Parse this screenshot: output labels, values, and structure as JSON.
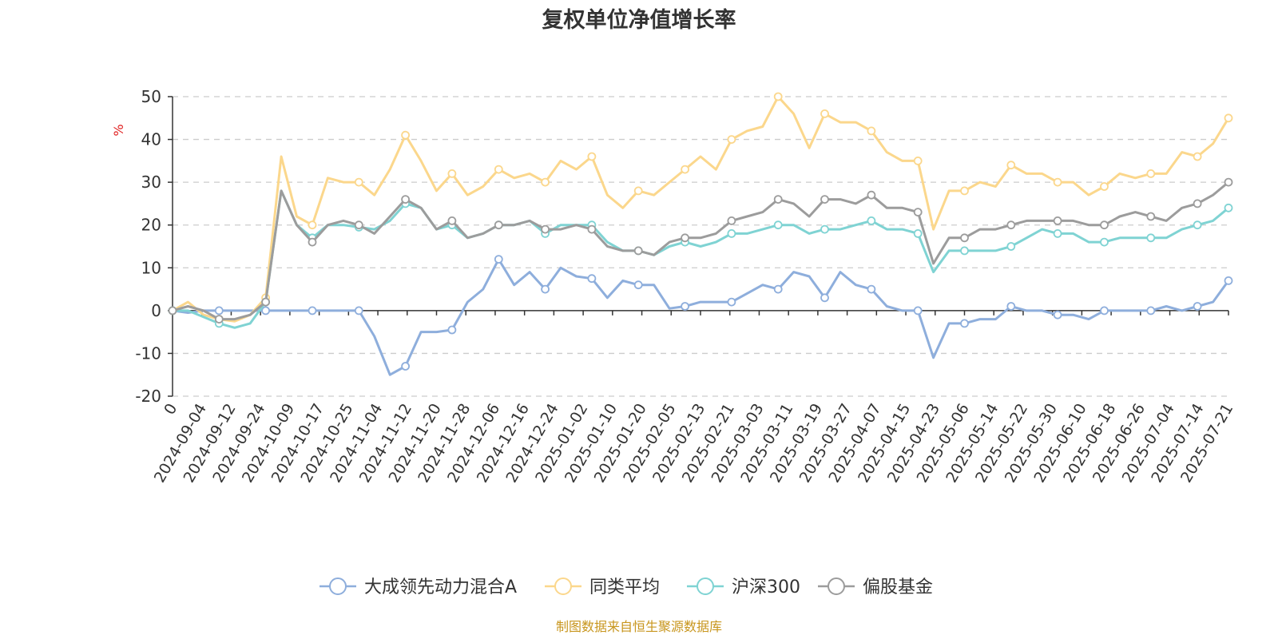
{
  "chart_data": {
    "type": "line",
    "title": "复权单位净值增长率",
    "ylabel": "%",
    "ylim": [
      -20,
      50
    ],
    "yticks": [
      -20,
      -10,
      0,
      10,
      20,
      30,
      40,
      50
    ],
    "grid": true,
    "legend_position": "bottom",
    "x_tick_labels": [
      "0",
      "2024-09-04",
      "2024-09-12",
      "2024-09-24",
      "2024-10-09",
      "2024-10-17",
      "2024-10-25",
      "2024-11-04",
      "2024-11-12",
      "2024-11-20",
      "2024-11-28",
      "2024-12-06",
      "2024-12-16",
      "2024-12-24",
      "2025-01-02",
      "2025-01-10",
      "2025-01-20",
      "2025-02-05",
      "2025-02-13",
      "2025-02-21",
      "2025-03-03",
      "2025-03-11",
      "2025-03-19",
      "2025-03-27",
      "2025-04-07",
      "2025-04-15",
      "2025-04-23",
      "2025-05-06",
      "2025-05-14",
      "2025-05-22",
      "2025-05-30",
      "2025-06-10",
      "2025-06-18",
      "2025-06-26",
      "2025-07-04",
      "2025-07-14",
      "2025-07-21"
    ],
    "series": [
      {
        "name": "大成领先动力混合A",
        "color": "#8eaedc",
        "values": [
          0,
          -0.5,
          0,
          0,
          0,
          0,
          0,
          0,
          0,
          0,
          0,
          0,
          0,
          -6,
          -15,
          -13,
          -5,
          -5,
          -4.5,
          2,
          5,
          12,
          6,
          9,
          5,
          10,
          8,
          7.5,
          3,
          7,
          6,
          6,
          0.5,
          1,
          2,
          2,
          2,
          4,
          6,
          5,
          9,
          8,
          3,
          9,
          6,
          5,
          1,
          0,
          0,
          -11,
          -3,
          -3,
          -2,
          -2,
          1,
          0,
          0,
          -1,
          -1,
          -2,
          0,
          0,
          0,
          0,
          1,
          0,
          1,
          2,
          7
        ]
      },
      {
        "name": "同类平均",
        "color": "#fbd78c",
        "values": [
          0,
          2,
          -1,
          -2,
          -2.5,
          -1,
          3,
          36,
          22,
          20,
          31,
          30,
          30,
          27,
          33,
          41,
          35,
          28,
          32,
          27,
          29,
          33,
          31,
          32,
          30,
          35,
          33,
          36,
          27,
          24,
          28,
          27,
          30,
          33,
          36,
          33,
          40,
          42,
          43,
          50,
          46,
          38,
          46,
          44,
          44,
          42,
          37,
          35,
          35,
          19,
          28,
          28,
          30,
          29,
          34,
          32,
          32,
          30,
          30,
          27,
          29,
          32,
          31,
          32,
          32,
          37,
          36,
          39,
          45
        ]
      },
      {
        "name": "沪深300",
        "color": "#7fd3d3",
        "values": [
          0,
          0,
          -1.5,
          -3,
          -4,
          -3,
          2,
          28,
          20,
          17,
          20,
          20,
          19.5,
          19,
          21,
          25,
          24,
          19,
          20,
          17,
          18,
          20,
          20,
          21,
          18,
          20,
          20,
          20,
          16,
          14,
          14,
          13,
          15,
          16,
          15,
          16,
          18,
          18,
          19,
          20,
          20,
          18,
          19,
          19,
          20,
          21,
          19,
          19,
          18,
          9,
          14,
          14,
          14,
          14,
          15,
          17,
          19,
          18,
          18,
          16,
          16,
          17,
          17,
          17,
          17,
          19,
          20,
          21,
          24
        ]
      },
      {
        "name": "偏股基金",
        "color": "#9c9c9c",
        "values": [
          0,
          1,
          0,
          -2,
          -2,
          -1,
          2,
          28,
          20,
          16,
          20,
          21,
          20,
          18,
          22,
          26,
          24,
          19,
          21,
          17,
          18,
          20,
          20,
          21,
          19,
          19,
          20,
          19,
          15,
          14,
          14,
          13,
          16,
          17,
          17,
          18,
          21,
          22,
          23,
          26,
          25,
          22,
          26,
          26,
          25,
          27,
          24,
          24,
          23,
          11,
          17,
          17,
          19,
          19,
          20,
          21,
          21,
          21,
          21,
          20,
          20,
          22,
          23,
          22,
          21,
          24,
          25,
          27,
          30
        ]
      }
    ]
  },
  "source_text": "制图数据来自恒生聚源数据库"
}
